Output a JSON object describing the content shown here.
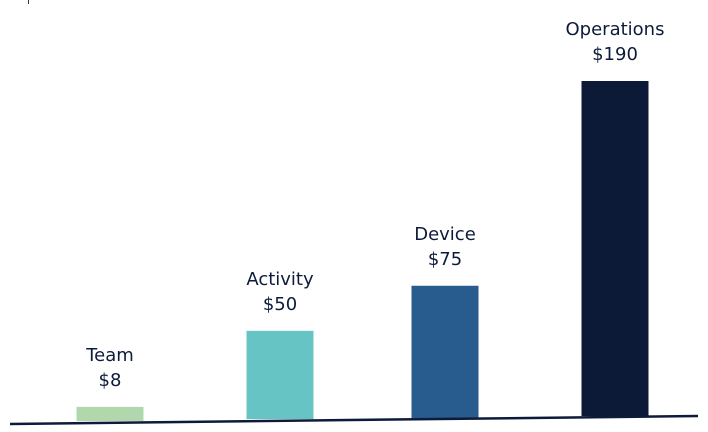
{
  "chart_data": {
    "type": "bar",
    "categories": [
      "Team",
      "Activity",
      "Device",
      "Operations"
    ],
    "values": [
      8,
      50,
      75,
      190
    ],
    "data_labels": [
      "$8",
      "$50",
      "$75",
      "$190"
    ],
    "colors": [
      "#b1d8ad",
      "#66c4c4",
      "#285b8e",
      "#0c1a38"
    ],
    "ylim": [
      0,
      190
    ],
    "grid": false,
    "title": "",
    "xlabel": "",
    "ylabel": ""
  }
}
